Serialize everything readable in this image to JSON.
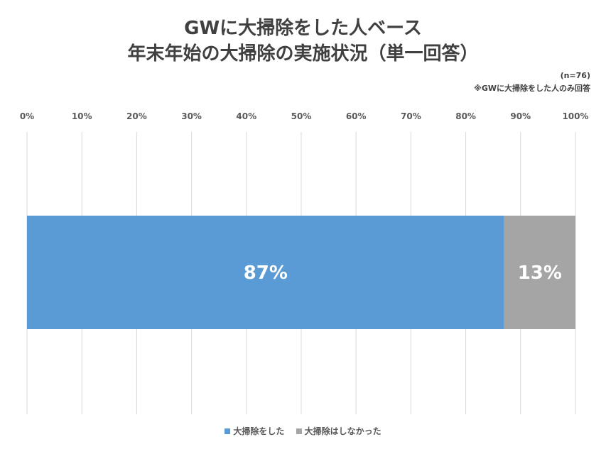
{
  "chart_data": {
    "type": "bar",
    "orientation": "horizontal",
    "stacked": true,
    "title_lines": [
      "GWに大掃除をした人ベース",
      "年末年始の大掃除の実施状況（単一回答）"
    ],
    "sample_note": "(n=76)",
    "subset_note": "※GWに大掃除をした人のみ回答",
    "xlim": [
      0,
      100
    ],
    "x_ticks": [
      0,
      10,
      20,
      30,
      40,
      50,
      60,
      70,
      80,
      90,
      100
    ],
    "tick_labels": [
      "0%",
      "10%",
      "20%",
      "30%",
      "40%",
      "50%",
      "60%",
      "70%",
      "80%",
      "90%",
      "100%"
    ],
    "grid": true,
    "legend_position": "bottom",
    "series": [
      {
        "name": "大掃除をした",
        "value": 87,
        "label": "87%",
        "color": "#5B9BD5"
      },
      {
        "name": "大掃除はしなかった",
        "value": 13,
        "label": "13%",
        "color": "#A5A5A5"
      }
    ]
  }
}
